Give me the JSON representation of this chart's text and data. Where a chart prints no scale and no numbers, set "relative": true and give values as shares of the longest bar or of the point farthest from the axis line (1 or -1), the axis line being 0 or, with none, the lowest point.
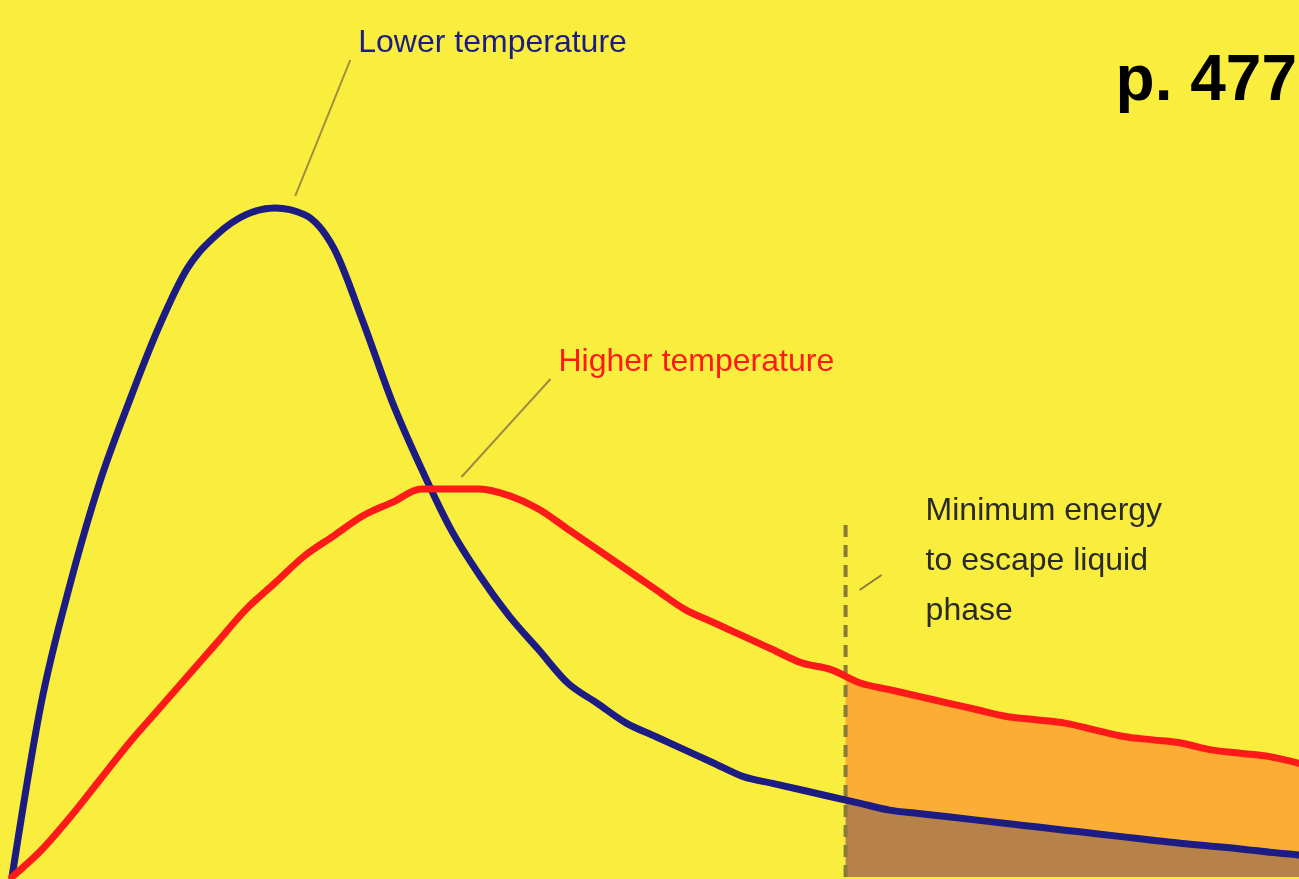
{
  "chart_data": {
    "type": "line",
    "relative": true,
    "categories": [
      null,
      null,
      null,
      null,
      null,
      null,
      null,
      null,
      null,
      null,
      null,
      null,
      null,
      null,
      null,
      null,
      null,
      null,
      null,
      null,
      null,
      null,
      null,
      null,
      null,
      null,
      null,
      null,
      null,
      null,
      null,
      null,
      null,
      null,
      null,
      null,
      null,
      null,
      null,
      null,
      null,
      null,
      null,
      null,
      null
    ],
    "series": [
      {
        "name": "Lower temperature",
        "color": "#1c1c82",
        "values": [
          0,
          0.26,
          0.44,
          0.59,
          0.71,
          0.82,
          0.91,
          0.96,
          0.99,
          1,
          0.99,
          0.94,
          0.83,
          0.71,
          0.61,
          0.52,
          0.45,
          0.39,
          0.34,
          0.29,
          0.26,
          0.23,
          0.21,
          0.19,
          0.17,
          0.15,
          0.14,
          0.13,
          0.12,
          0.11,
          0.1,
          0.095,
          0.09,
          0.085,
          0.08,
          0.075,
          0.07,
          0.065,
          0.06,
          0.055,
          0.05,
          0.046,
          0.042,
          0.037,
          0.033
        ]
      },
      {
        "name": "Higher temperature",
        "color": "#ff1a1a",
        "values": [
          0,
          0.04,
          0.09,
          0.145,
          0.2,
          0.25,
          0.3,
          0.35,
          0.4,
          0.44,
          0.48,
          0.51,
          0.54,
          0.56,
          0.58,
          0.58,
          0.58,
          0.57,
          0.55,
          0.52,
          0.49,
          0.46,
          0.43,
          0.4,
          0.38,
          0.36,
          0.34,
          0.32,
          0.31,
          0.29,
          0.28,
          0.27,
          0.26,
          0.25,
          0.24,
          0.235,
          0.23,
          0.22,
          0.21,
          0.205,
          0.2,
          0.19,
          0.185,
          0.18,
          0.17
        ]
      }
    ],
    "annotations": [
      "p. 477",
      "Minimum energy to escape liquid phase"
    ],
    "legend": false,
    "grid": false,
    "marker": "none",
    "line_style": "solid"
  }
}
